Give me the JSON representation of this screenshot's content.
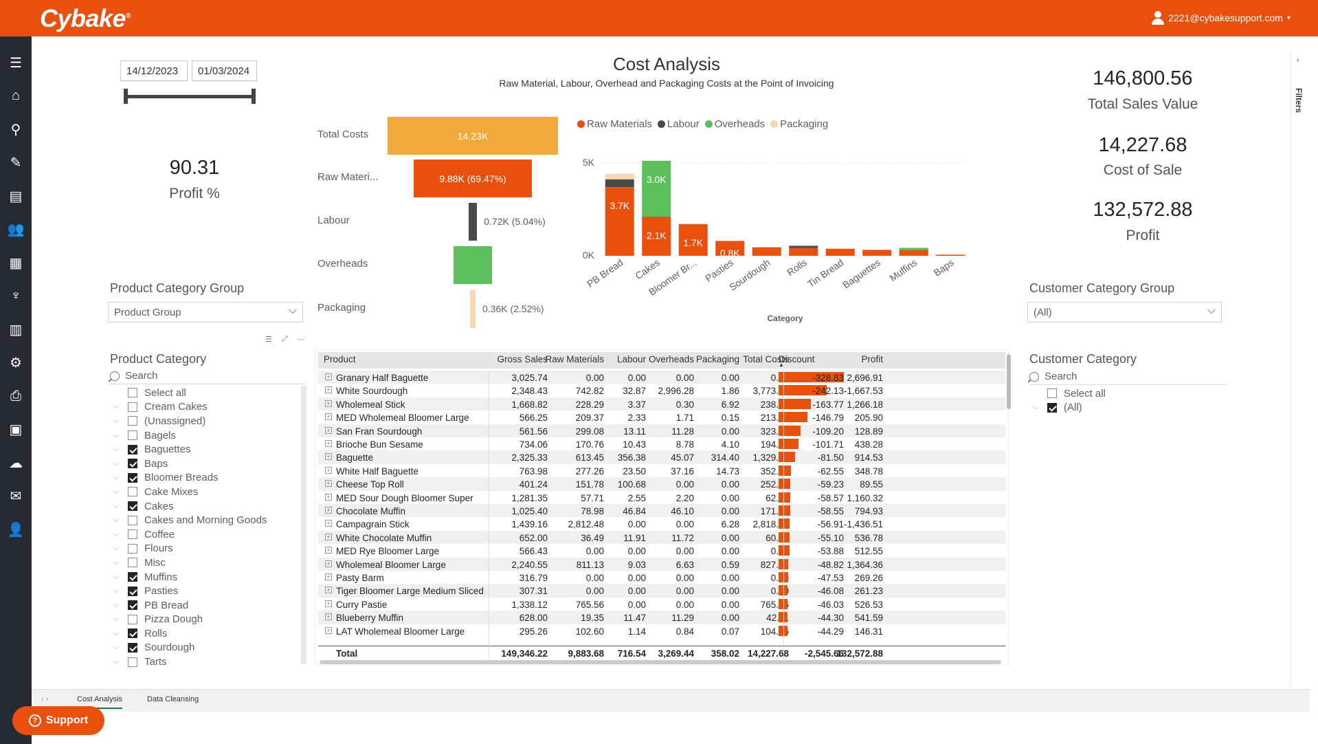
{
  "app": {
    "logo": "Cybake",
    "user": "2221@cybakesupport.com"
  },
  "sidebar_icons": [
    "menu-icon",
    "home-icon",
    "search-icon",
    "edit-icon",
    "store-icon",
    "customers-icon",
    "production-icon",
    "recipes-icon",
    "factory-icon",
    "settings-icon",
    "print-icon",
    "money-icon",
    "cloud-download-icon",
    "mail-icon",
    "user-settings-icon"
  ],
  "dates": {
    "start": "14/12/2023",
    "end": "01/03/2024"
  },
  "report": {
    "title": "Cost Analysis",
    "subtitle": "Raw Material, Labour, Overhead and Packaging Costs at the Point of Invoicing"
  },
  "kpis": {
    "profit_pct": {
      "value": "90.31",
      "label": "Profit %"
    },
    "total_sales": {
      "value": "146,800.56",
      "label": "Total Sales Value"
    },
    "cost_of_sale": {
      "value": "14,227.68",
      "label": "Cost of Sale"
    },
    "profit": {
      "value": "132,572.88",
      "label": "Profit"
    }
  },
  "product_category_group": {
    "title": "Product Category Group",
    "value": "Product Group"
  },
  "customer_category_group": {
    "title": "Customer Category Group",
    "value": "(All)"
  },
  "product_category": {
    "title": "Product Category",
    "search": "Search",
    "select_all": "Select all",
    "items": [
      {
        "label": "Cream Cakes",
        "checked": false
      },
      {
        "label": "(Unassigned)",
        "checked": false
      },
      {
        "label": "Bagels",
        "checked": false
      },
      {
        "label": "Baguettes",
        "checked": true
      },
      {
        "label": "Baps",
        "checked": true
      },
      {
        "label": "Bloomer Breads",
        "checked": true
      },
      {
        "label": "Cake Mixes",
        "checked": false
      },
      {
        "label": "Cakes",
        "checked": true
      },
      {
        "label": "Cakes and Morning Goods",
        "checked": false
      },
      {
        "label": "Coffee",
        "checked": false
      },
      {
        "label": "Flours",
        "checked": false
      },
      {
        "label": "Misc",
        "checked": false
      },
      {
        "label": "Muffins",
        "checked": true
      },
      {
        "label": "Pasties",
        "checked": true
      },
      {
        "label": "PB Bread",
        "checked": true
      },
      {
        "label": "Pizza Dough",
        "checked": false
      },
      {
        "label": "Rolls",
        "checked": true
      },
      {
        "label": "Sourdough",
        "checked": true
      },
      {
        "label": "Tarts",
        "checked": false
      }
    ]
  },
  "customer_category": {
    "title": "Customer Category",
    "search": "Search",
    "select_all": "Select all",
    "items": [
      {
        "label": "(All)",
        "checked": true
      }
    ]
  },
  "funnel": {
    "rows": [
      {
        "label": "Total Costs",
        "text": "14.23K",
        "value": 14227.68,
        "color": "#f2a93b"
      },
      {
        "label": "Raw Materi...",
        "text": "9.88K (69.47%)",
        "value": 9883.68,
        "color": "#e8500e"
      },
      {
        "label": "Labour",
        "text": "0.72K (5.04%)",
        "value": 716.54,
        "color": "#4a4a4a"
      },
      {
        "label": "Overheads",
        "text": "",
        "value": 3269.44,
        "color": "#5cbf5c"
      },
      {
        "label": "Packaging",
        "text": "0.36K (2.52%)",
        "value": 358.02,
        "color": "#f7d8b0"
      }
    ]
  },
  "chart_data": {
    "type": "bar",
    "stacked": true,
    "xlabel": "Category",
    "y_ticks": [
      "0K",
      "5K"
    ],
    "ylim": [
      0,
      5000
    ],
    "legend": [
      "Raw Materials",
      "Labour",
      "Overheads",
      "Packaging"
    ],
    "colors": [
      "#e8500e",
      "#4a4a4a",
      "#5cbf5c",
      "#f7d8b0"
    ],
    "categories": [
      "PB Bread",
      "Cakes",
      "Bloomer Br...",
      "Pasties",
      "Sourdough",
      "Rolls",
      "Tin Bread",
      "Baguettes",
      "Muffins",
      "Baps"
    ],
    "series": [
      {
        "name": "Raw Materials",
        "values": [
          3700,
          2100,
          1700,
          800,
          450,
          420,
          380,
          320,
          300,
          60
        ],
        "labels": [
          "3.7K",
          "2.1K",
          "1.7K",
          "0.8K",
          "",
          "",
          "",
          "",
          "",
          ""
        ]
      },
      {
        "name": "Labour",
        "values": [
          420,
          20,
          10,
          0,
          10,
          120,
          0,
          0,
          10,
          0
        ],
        "labels": [
          "",
          "",
          "",
          "",
          "",
          "",
          "",
          "",
          "",
          ""
        ]
      },
      {
        "name": "Overheads",
        "values": [
          0,
          3000,
          0,
          0,
          0,
          0,
          0,
          0,
          120,
          0
        ],
        "labels": [
          "",
          "3.0K",
          "",
          "",
          "",
          "",
          "",
          "",
          "",
          ""
        ]
      },
      {
        "name": "Packaging",
        "values": [
          300,
          0,
          0,
          0,
          0,
          0,
          0,
          0,
          0,
          0
        ],
        "labels": [
          "",
          "",
          "",
          "",
          "",
          "",
          "",
          "",
          "",
          ""
        ]
      }
    ]
  },
  "table": {
    "columns": [
      "Product",
      "Gross Sales",
      "Raw Materials",
      "Labour",
      "Overheads",
      "Packaging",
      "Total Costs",
      "Discount",
      "Profit"
    ],
    "discount_max": 328.83,
    "rows": [
      [
        "Granary Half Baguette",
        "3,025.74",
        "0.00",
        "0.00",
        "0.00",
        "0.00",
        "0.00",
        "-328.83",
        "2,696.91"
      ],
      [
        "White Sourdough",
        "2,348.43",
        "742.82",
        "32.87",
        "2,996.28",
        "1.86",
        "3,773.83",
        "-242.13",
        "-1,667.53"
      ],
      [
        "Wholemeal Stick",
        "1,668.82",
        "228.29",
        "3.37",
        "0.30",
        "6.92",
        "238.87",
        "-163.77",
        "1,266.18"
      ],
      [
        "MED Wholemeal Bloomer Large",
        "566.25",
        "209.37",
        "2.33",
        "1.71",
        "0.15",
        "213.56",
        "-146.79",
        "205.90"
      ],
      [
        "San Fran Sourdough",
        "561.56",
        "299.08",
        "13.11",
        "11.28",
        "0.00",
        "323.47",
        "-109.20",
        "128.89"
      ],
      [
        "Brioche Bun Sesame",
        "734.06",
        "170.76",
        "10.43",
        "8.78",
        "4.10",
        "194.07",
        "-101.71",
        "438.28"
      ],
      [
        "Baguette",
        "2,325.33",
        "613.45",
        "356.38",
        "45.07",
        "314.40",
        "1,329.30",
        "-81.50",
        "914.53"
      ],
      [
        "White Half Baguette",
        "763.98",
        "277.26",
        "23.50",
        "37.16",
        "14.73",
        "352.65",
        "-62.55",
        "348.78"
      ],
      [
        "Cheese Top Roll",
        "401.24",
        "151.78",
        "100.68",
        "0.00",
        "0.00",
        "252.46",
        "-59.23",
        "89.55"
      ],
      [
        "MED Sour Dough Bloomer Super",
        "1,281.35",
        "57.71",
        "2.55",
        "2.20",
        "0.00",
        "62.46",
        "-58.57",
        "1,160.32"
      ],
      [
        "Chocolate Muffin",
        "1,025.40",
        "78.98",
        "46.84",
        "46.10",
        "0.00",
        "171.92",
        "-58.55",
        "794.93"
      ],
      [
        "Campagrain Stick",
        "1,439.16",
        "2,812.48",
        "0.00",
        "0.00",
        "6.28",
        "2,818.76",
        "-56.91",
        "-1,436.51"
      ],
      [
        "White Chocolate Muffin",
        "652.00",
        "36.49",
        "11.91",
        "11.72",
        "0.00",
        "60.12",
        "-55.10",
        "536.78"
      ],
      [
        "MED Rye Bloomer Large",
        "566.43",
        "0.00",
        "0.00",
        "0.00",
        "0.00",
        "0.00",
        "-53.88",
        "512.55"
      ],
      [
        "Wholemeal Bloomer Large",
        "2,240.55",
        "811.13",
        "9.03",
        "6.63",
        "0.59",
        "827.37",
        "-48.82",
        "1,364.36"
      ],
      [
        "Pasty Barm",
        "316.79",
        "0.00",
        "0.00",
        "0.00",
        "0.00",
        "0.00",
        "-47.53",
        "269.26"
      ],
      [
        "Tiger Bloomer Large Medium Sliced",
        "307.31",
        "0.00",
        "0.00",
        "0.00",
        "0.00",
        "0.00",
        "-46.08",
        "261.23"
      ],
      [
        "Curry Pastie",
        "1,338.12",
        "765.56",
        "0.00",
        "0.00",
        "0.00",
        "765.56",
        "-46.03",
        "526.53"
      ],
      [
        "Blueberry Muffin",
        "628.00",
        "19.35",
        "11.47",
        "11.29",
        "0.00",
        "42.11",
        "-44.30",
        "541.59"
      ],
      [
        "LAT Wholemeal Bloomer Large",
        "295.26",
        "102.60",
        "1.14",
        "0.84",
        "0.07",
        "104.66",
        "-44.29",
        "146.31"
      ]
    ],
    "total": [
      "Total",
      "149,346.22",
      "9,883.68",
      "716.54",
      "3,269.44",
      "358.02",
      "14,227.68",
      "-2,545.66",
      "132,572.88"
    ]
  },
  "tabs": [
    "Cost Analysis",
    "Data Cleansing"
  ],
  "support": "Support",
  "filters_label": "Filters"
}
